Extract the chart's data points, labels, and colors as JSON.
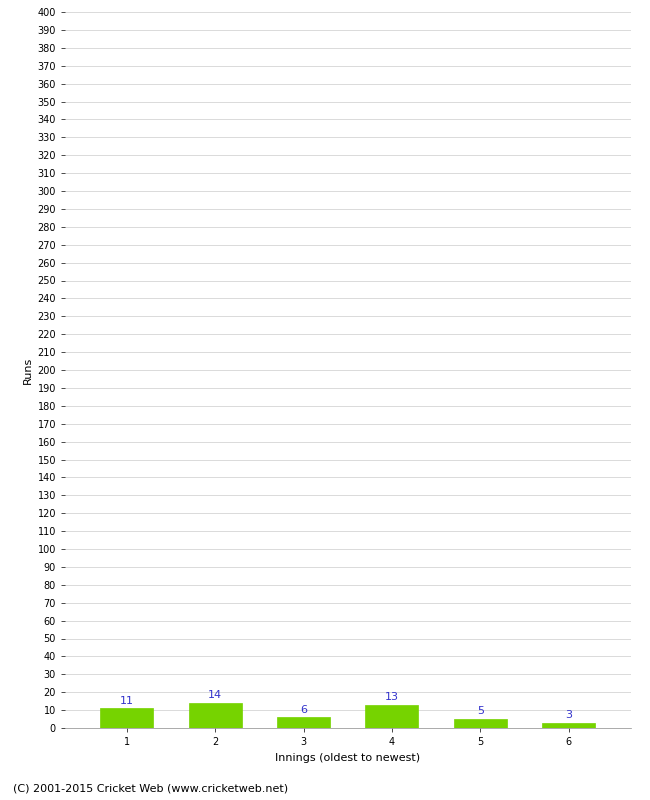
{
  "categories": [
    "1",
    "2",
    "3",
    "4",
    "5",
    "6"
  ],
  "values": [
    11,
    14,
    6,
    13,
    5,
    3
  ],
  "bar_color": "#76d300",
  "bar_edge_color": "#76d300",
  "value_color": "#3333cc",
  "xlabel": "Innings (oldest to newest)",
  "ylabel": "Runs",
  "ylim": [
    0,
    400
  ],
  "ytick_step": 10,
  "background_color": "#ffffff",
  "grid_color": "#cccccc",
  "footer": "(C) 2001-2015 Cricket Web (www.cricketweb.net)",
  "footer_fontsize": 8,
  "value_fontsize": 8,
  "axis_label_fontsize": 8,
  "tick_fontsize": 7
}
